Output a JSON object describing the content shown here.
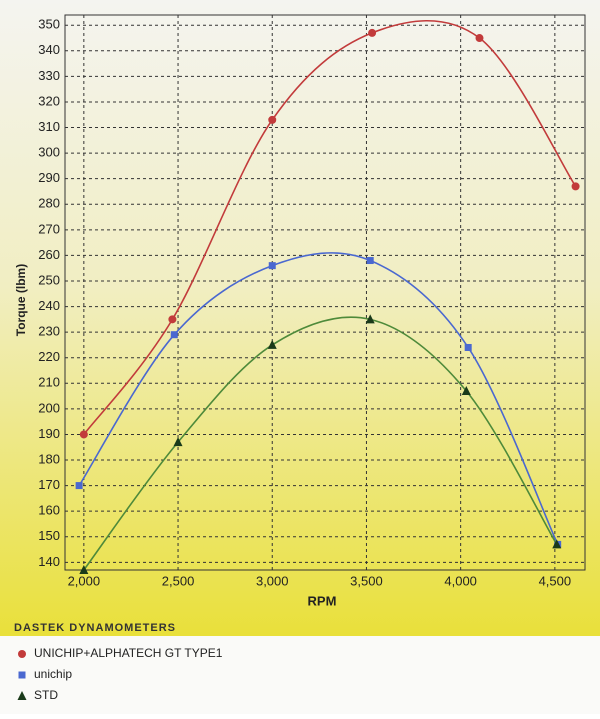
{
  "chart_data": {
    "type": "line",
    "x_label": "RPM",
    "y_label": "Torque (lbm)",
    "footer": "DASTEK DYNAMOMETERS",
    "xlim": [
      1900,
      4660
    ],
    "ylim": [
      137,
      354
    ],
    "xticks": [
      {
        "value": 2000,
        "label": "2,000"
      },
      {
        "value": 2500,
        "label": "2,500"
      },
      {
        "value": 3000,
        "label": "3,000"
      },
      {
        "value": 3500,
        "label": "3,500"
      },
      {
        "value": 4000,
        "label": "4,000"
      },
      {
        "value": 4500,
        "label": "4,500"
      }
    ],
    "yticks": [
      140,
      150,
      160,
      170,
      180,
      190,
      200,
      210,
      220,
      230,
      240,
      250,
      260,
      270,
      280,
      290,
      300,
      310,
      320,
      330,
      340,
      350
    ],
    "grid": true,
    "series": [
      {
        "name": "UNICHIP+ALPHATECH GT TYPE1",
        "color": "#c23b3b",
        "marker": "circle",
        "x": [
          2000,
          2470,
          3000,
          3530,
          4100,
          4610
        ],
        "values": [
          190,
          235,
          313,
          347,
          345,
          287
        ]
      },
      {
        "name": "unichip",
        "color": "#4a68d0",
        "marker": "square",
        "x": [
          1975,
          2480,
          3000,
          3520,
          4040,
          4515
        ],
        "values": [
          170,
          229,
          256,
          258,
          224,
          147
        ]
      },
      {
        "name": "STD",
        "color": "#4e8a3a",
        "marker": "triangle",
        "x": [
          2000,
          2500,
          3000,
          3520,
          4030,
          4510
        ],
        "values": [
          137,
          187,
          225,
          235,
          207,
          147
        ]
      }
    ]
  }
}
